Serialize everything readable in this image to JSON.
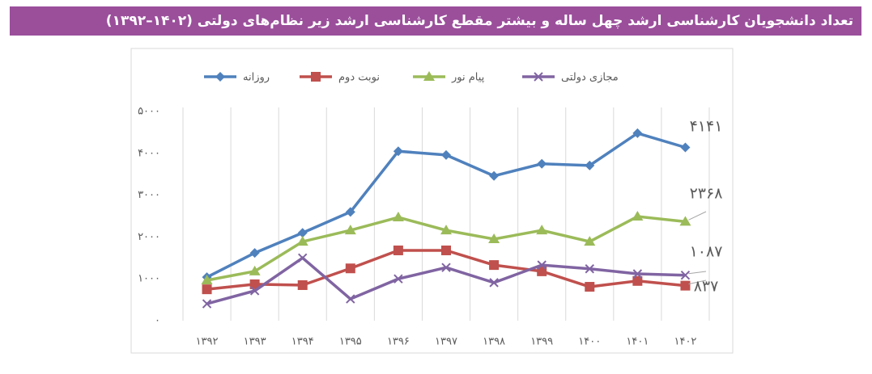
{
  "chart_data": {
    "type": "line",
    "title": "تعداد دانشجویان کارشناسی ارشد چهل ساله و بیشتر مقطع کارشناسی ارشد زیر نظام‌های دولتی (۱۴۰۲–۱۳۹۲)",
    "categories": [
      "۱۳۹۲",
      "۱۳۹۳",
      "۱۳۹۴",
      "۱۳۹۵",
      "۱۳۹۶",
      "۱۳۹۷",
      "۱۳۹۸",
      "۱۳۹۹",
      "۱۴۰۰",
      "۱۴۰۱",
      "۱۴۰۲"
    ],
    "ylim": [
      0,
      5000
    ],
    "yticks": [
      {
        "value": 0,
        "label": "۰"
      },
      {
        "value": 1000,
        "label": "۱۰۰۰"
      },
      {
        "value": 2000,
        "label": "۲۰۰۰"
      },
      {
        "value": 3000,
        "label": "۳۰۰۰"
      },
      {
        "value": 4000,
        "label": "۴۰۰۰"
      },
      {
        "value": 5000,
        "label": "۵۰۰۰"
      }
    ],
    "series": [
      {
        "name": "روزانه",
        "color": "#4f81bd",
        "marker": "diamond",
        "values": [
          1040,
          1620,
          2100,
          2600,
          4050,
          3960,
          3460,
          3750,
          3710,
          4480,
          4141
        ],
        "value_labels": [
          null,
          null,
          null,
          null,
          null,
          null,
          null,
          null,
          null,
          null,
          "۴۱۴۱"
        ]
      },
      {
        "name": "نوبت دوم",
        "color": "#c0504d",
        "marker": "square",
        "values": [
          750,
          870,
          850,
          1250,
          1680,
          1680,
          1330,
          1180,
          810,
          950,
          837
        ],
        "value_labels": [
          null,
          null,
          null,
          null,
          null,
          null,
          null,
          null,
          null,
          null,
          "۸۳۷"
        ]
      },
      {
        "name": "پیام نور",
        "color": "#9bbb59",
        "marker": "triangle",
        "values": [
          965,
          1180,
          1890,
          2160,
          2470,
          2160,
          1950,
          2160,
          1890,
          2490,
          2368
        ],
        "value_labels": [
          null,
          null,
          null,
          null,
          null,
          null,
          null,
          null,
          null,
          null,
          "۲۳۶۸"
        ]
      },
      {
        "name": "مجازی دولتی",
        "color": "#8064a2",
        "marker": "x",
        "values": [
          405,
          715,
          1500,
          520,
          1000,
          1270,
          910,
          1330,
          1240,
          1120,
          1087
        ],
        "value_labels": [
          null,
          null,
          null,
          null,
          null,
          null,
          null,
          null,
          null,
          null,
          "۱۰۸۷"
        ]
      }
    ]
  }
}
